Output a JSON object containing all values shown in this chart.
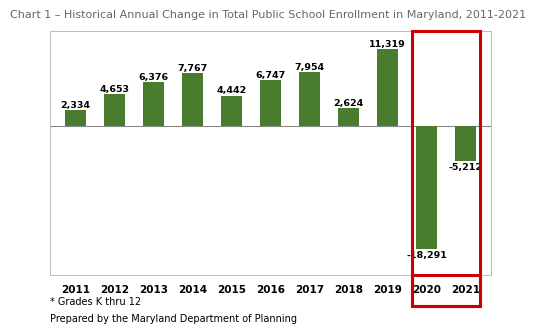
{
  "title": "Chart 1 – Historical Annual Change in Total Public School Enrollment in Maryland, 2011-2021",
  "years": [
    "2011",
    "2012",
    "2013",
    "2014",
    "2015",
    "2016",
    "2017",
    "2018",
    "2019",
    "2020",
    "2021"
  ],
  "values": [
    2334,
    4653,
    6376,
    7767,
    4442,
    6747,
    7954,
    2624,
    11319,
    -18291,
    -5212
  ],
  "bar_color": "#4a7c2f",
  "highlight_box_color": "#cc0000",
  "footnote1": "* Grades K thru 12",
  "footnote2": "Prepared by the Maryland Department of Planning",
  "title_fontsize": 8.0,
  "label_fontsize": 6.8,
  "tick_fontsize": 7.5,
  "footnote_fontsize": 7.0,
  "ylim": [
    -22000,
    14000
  ],
  "background_color": "#ffffff",
  "chart_bg": "#ffffff"
}
